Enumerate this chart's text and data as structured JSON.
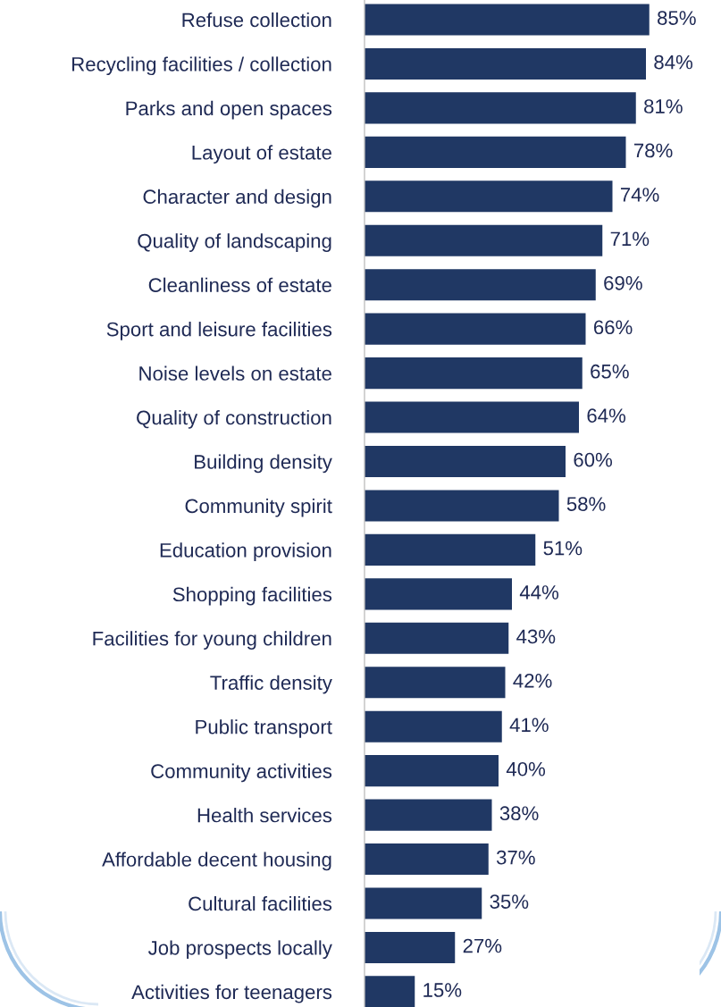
{
  "chart_data": {
    "type": "bar",
    "orientation": "horizontal",
    "categories": [
      "Refuse collection",
      "Recycling facilities / collection",
      "Parks and open spaces",
      "Layout of estate",
      "Character and design",
      "Quality of landscaping",
      "Cleanliness of estate",
      "Sport and leisure facilities",
      "Noise levels on estate",
      "Quality of construction",
      "Building density",
      "Community spirit",
      "Education provision",
      "Shopping facilities",
      "Facilities for young children",
      "Traffic density",
      "Public transport",
      "Community activities",
      "Health services",
      "Affordable decent housing",
      "Cultural facilities",
      "Job prospects locally",
      "Activities for teenagers"
    ],
    "values": [
      85,
      84,
      81,
      78,
      74,
      71,
      69,
      66,
      65,
      64,
      60,
      58,
      51,
      44,
      43,
      42,
      41,
      40,
      38,
      37,
      35,
      27,
      15
    ],
    "value_labels": [
      "85%",
      "84%",
      "81%",
      "78%",
      "74%",
      "71%",
      "69%",
      "66%",
      "65%",
      "64%",
      "60%",
      "58%",
      "51%",
      "44%",
      "43%",
      "42%",
      "41%",
      "40%",
      "38%",
      "37%",
      "35%",
      "27%",
      "15%"
    ],
    "color": "#203864",
    "xlim": [
      0,
      100
    ],
    "grid": false,
    "legend": false
  }
}
